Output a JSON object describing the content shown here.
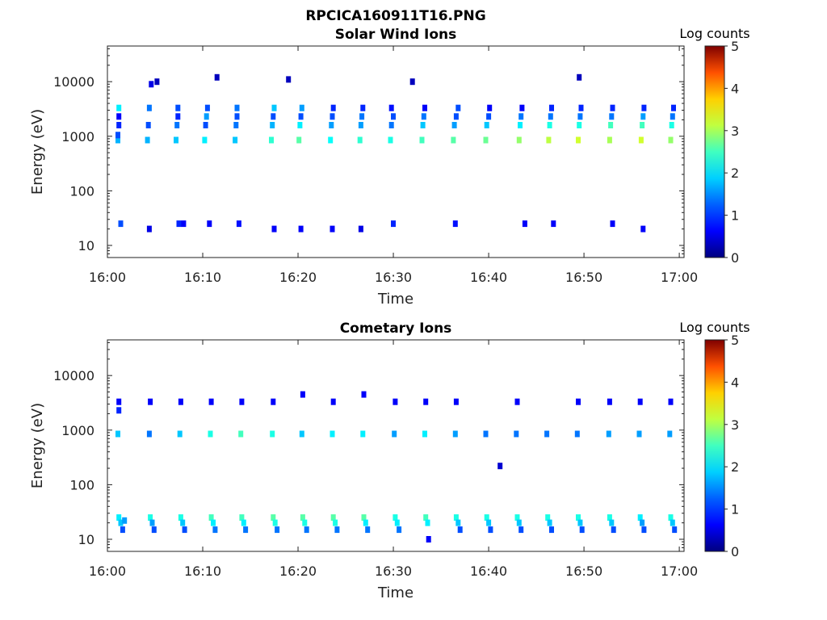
{
  "figure_title": "RPCICA160911T16.PNG",
  "colors": {
    "colormap": "jet",
    "stops": [
      "#00007f",
      "#0000ff",
      "#007fff",
      "#00ffff",
      "#7fff7f",
      "#ffff00",
      "#ff7f00",
      "#ff0000",
      "#7f0000"
    ]
  },
  "chart_data": [
    {
      "type": "heatmap",
      "title": "Solar Wind Ions",
      "xlabel": "Time",
      "ylabel": "Energy (eV)",
      "xticks": [
        "16:00",
        "16:10",
        "16:20",
        "16:30",
        "16:40",
        "16:50",
        "17:00"
      ],
      "xlim_minutes": [
        0,
        60.5
      ],
      "yticks": [
        "10",
        "100",
        "1000",
        "10000"
      ],
      "ylim": [
        6,
        45000
      ],
      "yscale": "log",
      "colorbar": {
        "title": "Log counts",
        "ticks": [
          "0",
          "1",
          "2",
          "3",
          "4",
          "5"
        ],
        "range": [
          0,
          5
        ]
      },
      "cells": [
        [
          1.1,
          850,
          1.5
        ],
        [
          1.1,
          1050,
          1.0
        ],
        [
          1.2,
          1600,
          0.8
        ],
        [
          1.2,
          2300,
          0.6
        ],
        [
          1.2,
          3300,
          1.8
        ],
        [
          1.4,
          25,
          1.0
        ],
        [
          4.2,
          850,
          1.5
        ],
        [
          4.3,
          1600,
          1.0
        ],
        [
          4.4,
          3300,
          1.2
        ],
        [
          4.4,
          20,
          0.5
        ],
        [
          4.6,
          9000,
          0.5
        ],
        [
          5.2,
          10000,
          0.3
        ],
        [
          7.2,
          850,
          1.6
        ],
        [
          7.3,
          1600,
          1.2
        ],
        [
          7.4,
          2300,
          0.8
        ],
        [
          7.4,
          3300,
          1.0
        ],
        [
          7.5,
          25,
          0.8
        ],
        [
          8.0,
          25,
          0.6
        ],
        [
          10.2,
          850,
          1.8
        ],
        [
          10.3,
          1600,
          1.0
        ],
        [
          10.4,
          2300,
          1.4
        ],
        [
          10.5,
          3300,
          1.0
        ],
        [
          10.7,
          25,
          0.6
        ],
        [
          11.5,
          12000,
          0.3
        ],
        [
          13.4,
          850,
          1.6
        ],
        [
          13.5,
          1600,
          1.2
        ],
        [
          13.6,
          2300,
          1.0
        ],
        [
          13.6,
          3300,
          1.2
        ],
        [
          13.8,
          25,
          0.7
        ],
        [
          17.2,
          850,
          2.1
        ],
        [
          17.3,
          1600,
          1.5
        ],
        [
          17.4,
          2300,
          1.0
        ],
        [
          17.5,
          3300,
          1.6
        ],
        [
          17.5,
          20,
          0.6
        ],
        [
          20.1,
          850,
          2.3
        ],
        [
          20.2,
          1600,
          1.8
        ],
        [
          20.3,
          2300,
          1.0
        ],
        [
          20.4,
          3300,
          1.4
        ],
        [
          20.3,
          20,
          0.6
        ],
        [
          19.0,
          11000,
          0.3
        ],
        [
          23.4,
          850,
          1.9
        ],
        [
          23.5,
          1600,
          1.4
        ],
        [
          23.6,
          2300,
          1.0
        ],
        [
          23.7,
          3300,
          0.8
        ],
        [
          23.6,
          20,
          0.6
        ],
        [
          26.5,
          850,
          2.1
        ],
        [
          26.6,
          1600,
          1.4
        ],
        [
          26.7,
          2300,
          1.2
        ],
        [
          26.8,
          3300,
          0.8
        ],
        [
          26.6,
          20,
          0.5
        ],
        [
          29.7,
          850,
          2.0
        ],
        [
          29.8,
          1600,
          1.2
        ],
        [
          30.0,
          2300,
          1.0
        ],
        [
          29.8,
          3300,
          0.7
        ],
        [
          30.0,
          25,
          0.8
        ],
        [
          32.0,
          10000,
          0.3
        ],
        [
          33.0,
          850,
          2.2
        ],
        [
          33.1,
          1600,
          1.6
        ],
        [
          33.2,
          2300,
          1.2
        ],
        [
          33.3,
          3300,
          0.6
        ],
        [
          36.3,
          850,
          2.3
        ],
        [
          36.4,
          1600,
          1.4
        ],
        [
          36.6,
          2300,
          1.0
        ],
        [
          36.8,
          3300,
          1.0
        ],
        [
          36.5,
          25,
          0.7
        ],
        [
          39.7,
          850,
          2.4
        ],
        [
          39.8,
          1600,
          1.6
        ],
        [
          40.0,
          2300,
          1.0
        ],
        [
          40.1,
          3300,
          0.6
        ],
        [
          43.2,
          850,
          2.6
        ],
        [
          43.3,
          1600,
          1.8
        ],
        [
          43.4,
          2300,
          1.2
        ],
        [
          43.5,
          3300,
          0.6
        ],
        [
          43.8,
          25,
          0.6
        ],
        [
          46.3,
          850,
          2.8
        ],
        [
          46.4,
          1600,
          2.0
        ],
        [
          46.5,
          2300,
          1.2
        ],
        [
          46.6,
          3300,
          0.8
        ],
        [
          46.8,
          25,
          0.6
        ],
        [
          49.4,
          850,
          2.9
        ],
        [
          49.5,
          1600,
          2.0
        ],
        [
          49.6,
          2300,
          1.2
        ],
        [
          49.7,
          3300,
          0.8
        ],
        [
          49.5,
          12000,
          0.3
        ],
        [
          52.7,
          850,
          2.7
        ],
        [
          52.8,
          1600,
          2.2
        ],
        [
          52.9,
          2300,
          1.2
        ],
        [
          53.0,
          3300,
          0.8
        ],
        [
          53.0,
          25,
          0.6
        ],
        [
          56.0,
          850,
          2.9
        ],
        [
          56.1,
          1600,
          2.2
        ],
        [
          56.2,
          2300,
          1.4
        ],
        [
          56.3,
          3300,
          0.8
        ],
        [
          56.2,
          20,
          0.6
        ],
        [
          59.1,
          850,
          2.6
        ],
        [
          59.2,
          1600,
          2.0
        ],
        [
          59.3,
          2300,
          1.2
        ],
        [
          59.4,
          3300,
          0.8
        ]
      ]
    },
    {
      "type": "heatmap",
      "title": "Cometary Ions",
      "xlabel": "Time",
      "ylabel": "Energy (eV)",
      "xticks": [
        "16:00",
        "16:10",
        "16:20",
        "16:30",
        "16:40",
        "16:50",
        "17:00"
      ],
      "xlim_minutes": [
        0,
        60.5
      ],
      "yticks": [
        "10",
        "100",
        "1000",
        "10000"
      ],
      "ylim": [
        6,
        45000
      ],
      "yscale": "log",
      "colorbar": {
        "title": "Log counts",
        "ticks": [
          "0",
          "1",
          "2",
          "3",
          "4",
          "5"
        ],
        "range": [
          0,
          5
        ]
      },
      "cells": [
        [
          1.1,
          850,
          1.6
        ],
        [
          1.2,
          3300,
          0.6
        ],
        [
          1.2,
          2300,
          0.8
        ],
        [
          1.2,
          25,
          1.8
        ],
        [
          1.4,
          20,
          1.6
        ],
        [
          1.6,
          15,
          1.0
        ],
        [
          1.8,
          22,
          1.4
        ],
        [
          4.4,
          850,
          1.2
        ],
        [
          4.5,
          3300,
          0.6
        ],
        [
          4.5,
          25,
          2.0
        ],
        [
          4.7,
          20,
          1.4
        ],
        [
          4.9,
          15,
          1.0
        ],
        [
          7.6,
          850,
          1.6
        ],
        [
          7.7,
          3300,
          0.6
        ],
        [
          7.7,
          25,
          2.0
        ],
        [
          7.9,
          20,
          1.6
        ],
        [
          8.1,
          15,
          1.0
        ],
        [
          10.8,
          850,
          2.0
        ],
        [
          10.9,
          3300,
          0.6
        ],
        [
          10.9,
          25,
          2.2
        ],
        [
          11.1,
          20,
          1.8
        ],
        [
          11.3,
          15,
          1.2
        ],
        [
          14.0,
          850,
          2.2
        ],
        [
          14.1,
          3300,
          0.6
        ],
        [
          14.1,
          25,
          2.2
        ],
        [
          14.3,
          20,
          1.8
        ],
        [
          14.5,
          15,
          1.2
        ],
        [
          17.3,
          850,
          2.0
        ],
        [
          17.4,
          3300,
          0.6
        ],
        [
          17.4,
          25,
          2.3
        ],
        [
          17.6,
          20,
          2.0
        ],
        [
          17.8,
          15,
          1.2
        ],
        [
          20.4,
          850,
          1.6
        ],
        [
          20.5,
          4500,
          0.6
        ],
        [
          20.5,
          25,
          2.3
        ],
        [
          20.7,
          20,
          2.0
        ],
        [
          20.9,
          15,
          1.2
        ],
        [
          23.6,
          850,
          1.8
        ],
        [
          23.7,
          3300,
          0.6
        ],
        [
          23.7,
          25,
          2.3
        ],
        [
          23.9,
          20,
          2.0
        ],
        [
          24.1,
          15,
          1.2
        ],
        [
          26.8,
          850,
          1.8
        ],
        [
          26.9,
          4500,
          0.6
        ],
        [
          26.9,
          25,
          2.3
        ],
        [
          27.1,
          20,
          1.8
        ],
        [
          27.3,
          15,
          1.2
        ],
        [
          30.1,
          850,
          1.4
        ],
        [
          30.2,
          3300,
          0.6
        ],
        [
          30.2,
          25,
          2.0
        ],
        [
          30.4,
          20,
          1.8
        ],
        [
          30.6,
          15,
          1.2
        ],
        [
          33.3,
          850,
          1.8
        ],
        [
          33.4,
          3300,
          0.6
        ],
        [
          33.4,
          25,
          2.2
        ],
        [
          33.6,
          20,
          1.8
        ],
        [
          33.7,
          10,
          0.6
        ],
        [
          36.5,
          850,
          1.4
        ],
        [
          36.6,
          3300,
          0.6
        ],
        [
          36.6,
          25,
          2.0
        ],
        [
          36.8,
          20,
          1.6
        ],
        [
          37.0,
          15,
          1.0
        ],
        [
          39.7,
          850,
          1.2
        ],
        [
          39.8,
          25,
          2.0
        ],
        [
          40.0,
          20,
          1.6
        ],
        [
          40.2,
          15,
          1.0
        ],
        [
          41.2,
          220,
          0.4
        ],
        [
          42.9,
          850,
          1.2
        ],
        [
          43.0,
          3300,
          0.6
        ],
        [
          43.0,
          25,
          2.0
        ],
        [
          43.2,
          20,
          1.6
        ],
        [
          43.4,
          15,
          1.0
        ],
        [
          46.1,
          850,
          1.2
        ],
        [
          46.2,
          25,
          2.0
        ],
        [
          46.4,
          20,
          1.6
        ],
        [
          46.6,
          15,
          1.0
        ],
        [
          49.3,
          850,
          1.2
        ],
        [
          49.4,
          3300,
          0.6
        ],
        [
          49.4,
          25,
          2.0
        ],
        [
          49.6,
          20,
          1.6
        ],
        [
          49.8,
          15,
          1.0
        ],
        [
          52.6,
          850,
          1.4
        ],
        [
          52.7,
          3300,
          0.6
        ],
        [
          52.7,
          25,
          2.0
        ],
        [
          52.9,
          20,
          1.6
        ],
        [
          53.1,
          15,
          1.0
        ],
        [
          55.8,
          850,
          1.4
        ],
        [
          55.9,
          3300,
          0.6
        ],
        [
          55.9,
          25,
          1.8
        ],
        [
          56.1,
          20,
          1.4
        ],
        [
          56.3,
          15,
          1.0
        ],
        [
          59.0,
          850,
          1.4
        ],
        [
          59.1,
          3300,
          0.6
        ],
        [
          59.1,
          25,
          2.0
        ],
        [
          59.3,
          20,
          1.6
        ],
        [
          59.5,
          15,
          1.0
        ]
      ]
    }
  ]
}
